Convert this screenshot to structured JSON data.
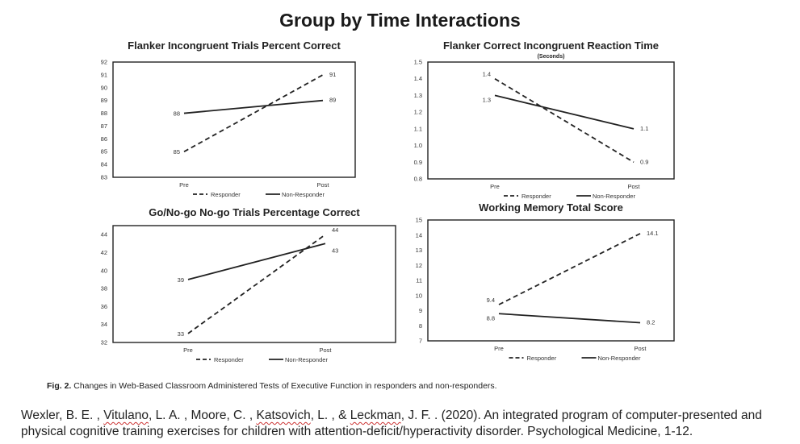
{
  "main_title": "Group by Time Interactions",
  "colors": {
    "line": "#222222",
    "axis": "#222222"
  },
  "chart_data": [
    {
      "type": "line",
      "title": "Flanker Incongruent Trials Percent Correct",
      "subtitle": "",
      "categories": [
        "Pre",
        "Post"
      ],
      "ylim": [
        83,
        92
      ],
      "yticks": [
        "92",
        "91",
        "90",
        "89",
        "88",
        "87",
        "86",
        "85",
        "84",
        "83"
      ],
      "series": [
        {
          "name": "Responder",
          "style": "dashed",
          "values": [
            85,
            91
          ],
          "labels": [
            "85",
            "91"
          ]
        },
        {
          "name": "Non-Responder",
          "style": "solid",
          "values": [
            88,
            89
          ],
          "labels": [
            "88",
            "89"
          ]
        }
      ],
      "legend": [
        "- - Responder",
        "— Non-Responder"
      ]
    },
    {
      "type": "line",
      "title": "Flanker Correct Incongruent Reaction Time",
      "subtitle": "(Seconds)",
      "categories": [
        "Pre",
        "Post"
      ],
      "ylim": [
        0.8,
        1.5
      ],
      "yticks": [
        "1.5",
        "1.4",
        "1.3",
        "1.2",
        "1.1",
        "1.0",
        "0.9",
        "0.8"
      ],
      "series": [
        {
          "name": "Responder",
          "style": "dashed",
          "values": [
            1.4,
            0.9
          ],
          "labels": [
            "1.4",
            "0.9"
          ]
        },
        {
          "name": "Non-Responder",
          "style": "solid",
          "values": [
            1.3,
            1.1
          ],
          "labels": [
            "1.3",
            "1.1"
          ]
        }
      ],
      "legend": [
        "- - Responder",
        "— Non-Responder"
      ]
    },
    {
      "type": "line",
      "title": "Go/No-go No-go Trials Percentage Correct",
      "subtitle": "",
      "categories": [
        "Pre",
        "Post"
      ],
      "ylim": [
        32,
        45
      ],
      "yticks": [
        "44",
        "42",
        "40",
        "38",
        "36",
        "34",
        "32"
      ],
      "series": [
        {
          "name": "Responder",
          "style": "dashed",
          "values": [
            33,
            44
          ],
          "labels": [
            "33",
            "44"
          ]
        },
        {
          "name": "Non-Responder",
          "style": "solid",
          "values": [
            39,
            43
          ],
          "labels": [
            "39",
            "43"
          ]
        }
      ],
      "legend": [
        "- - Responder",
        "— Non-Responder"
      ]
    },
    {
      "type": "line",
      "title": "Working Memory Total Score",
      "subtitle": "",
      "categories": [
        "Pre",
        "Post"
      ],
      "ylim": [
        7,
        15
      ],
      "yticks": [
        "15",
        "14",
        "13",
        "12",
        "11",
        "10",
        "9",
        "8",
        "7"
      ],
      "series": [
        {
          "name": "Responder",
          "style": "dashed",
          "values": [
            9.4,
            14.1
          ],
          "labels": [
            "9.4",
            "14.1"
          ]
        },
        {
          "name": "Non-Responder",
          "style": "solid",
          "values": [
            8.8,
            8.2
          ],
          "labels": [
            "8.8",
            "8.2"
          ]
        }
      ],
      "legend": [
        "- - Responder",
        "— Non-Responder"
      ]
    }
  ],
  "caption": {
    "label": "Fig. 2.",
    "text": " Changes in Web-Based Classroom Administered Tests of Executive Function in responders and non-responders."
  },
  "citation": {
    "part1": "Wexler, B. E. ,  ",
    "a2": "Vitulano",
    "part2": ", L. A. ,  Moore, C. ,  ",
    "a4": "Katsovich",
    "part3": ", L. , &  ",
    "a5": "Leckman",
    "part4": ", J. F. . (2020). An integrated program of computer-presented and physical cognitive training exercises for children with attention-deficit/hyperactivity disorder. Psychological Medicine, 1-12."
  }
}
